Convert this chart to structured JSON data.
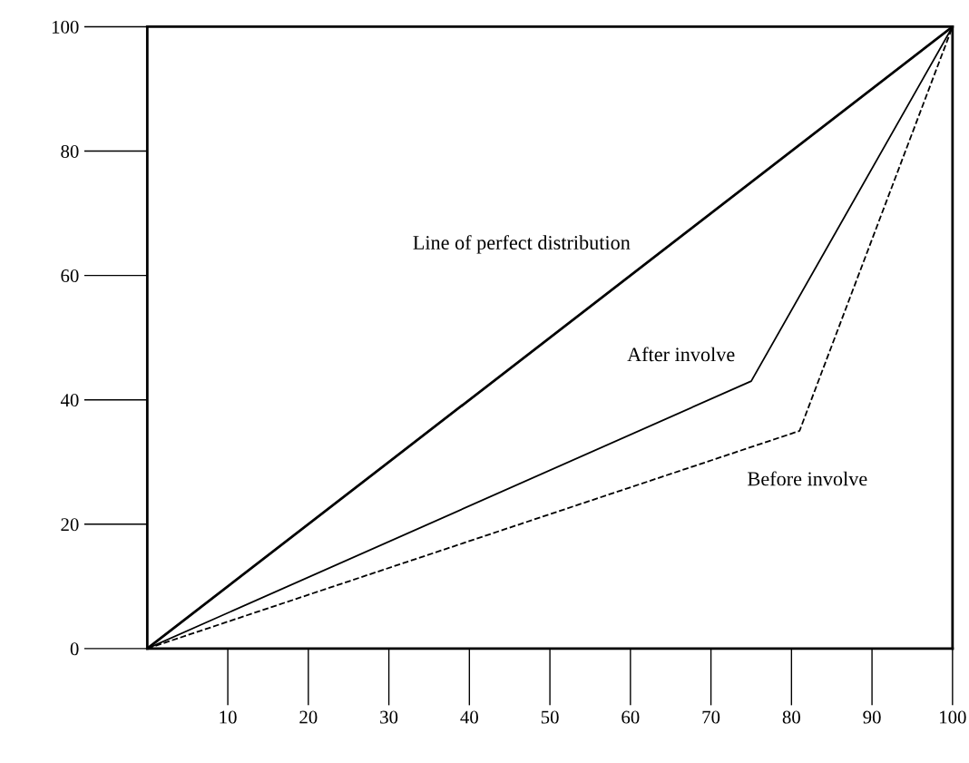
{
  "chart_data": {
    "type": "line",
    "legend": false,
    "grid": false,
    "marker": "none",
    "xlim": [
      0,
      100
    ],
    "ylim": [
      0,
      100
    ],
    "xticks": [
      10,
      20,
      30,
      40,
      50,
      60,
      70,
      80,
      90,
      100
    ],
    "yticks": [
      0,
      20,
      40,
      60,
      80,
      100
    ],
    "series": [
      {
        "name": "Line of perfect distribution",
        "color": "#000000",
        "line_style": "solid",
        "x": [
          0,
          100
        ],
        "values": [
          0,
          100
        ]
      },
      {
        "name": "After involve",
        "color": "#000000",
        "line_style": "solid",
        "x": [
          0,
          75,
          100
        ],
        "values": [
          0,
          43,
          100
        ]
      },
      {
        "name": "Before involve",
        "color": "#000000",
        "line_style": "dashed",
        "x": [
          0,
          81,
          100
        ],
        "values": [
          0,
          35,
          100
        ]
      }
    ]
  }
}
